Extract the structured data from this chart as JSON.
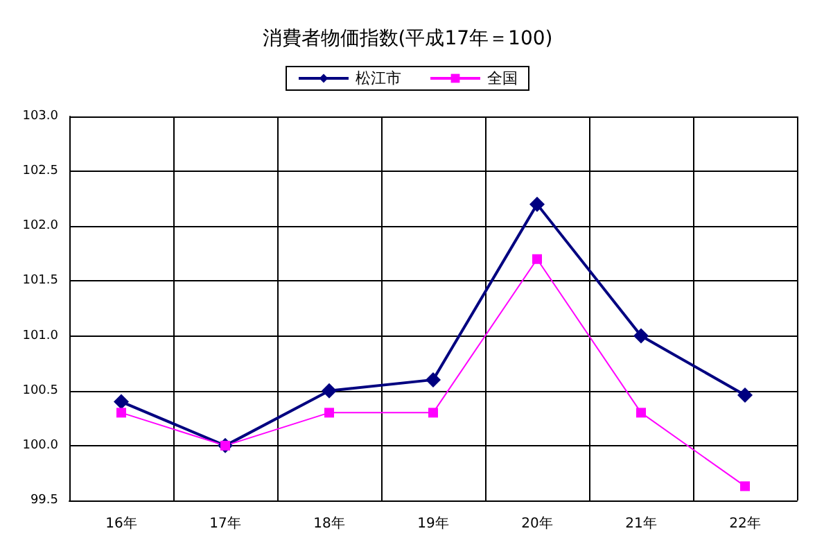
{
  "chart_data": {
    "type": "line",
    "title": "消費者物価指数(平成17年＝100)",
    "categories": [
      "16年",
      "17年",
      "18年",
      "19年",
      "20年",
      "21年",
      "22年"
    ],
    "series": [
      {
        "name": "松江市",
        "color": "#000080",
        "marker": "diamond",
        "values": [
          100.4,
          100.0,
          100.5,
          100.6,
          102.2,
          101.0,
          100.46
        ]
      },
      {
        "name": "全国",
        "color": "#ff00ff",
        "marker": "square",
        "values": [
          100.3,
          100.0,
          100.3,
          100.3,
          101.7,
          100.3,
          99.63
        ]
      }
    ],
    "ylim": [
      99.5,
      103.0
    ],
    "yticks": [
      {
        "value": 99.5,
        "label": "99.5"
      },
      {
        "value": 100,
        "label": "100.0"
      },
      {
        "value": 100.5,
        "label": "100.5"
      },
      {
        "value": 101,
        "label": "101.0"
      },
      {
        "value": 101.5,
        "label": "101.5"
      },
      {
        "value": 102,
        "label": "102.0"
      },
      {
        "value": 102.5,
        "label": "102.5"
      },
      {
        "value": 103,
        "label": "103.0"
      }
    ],
    "grid": true,
    "legend": "top"
  }
}
